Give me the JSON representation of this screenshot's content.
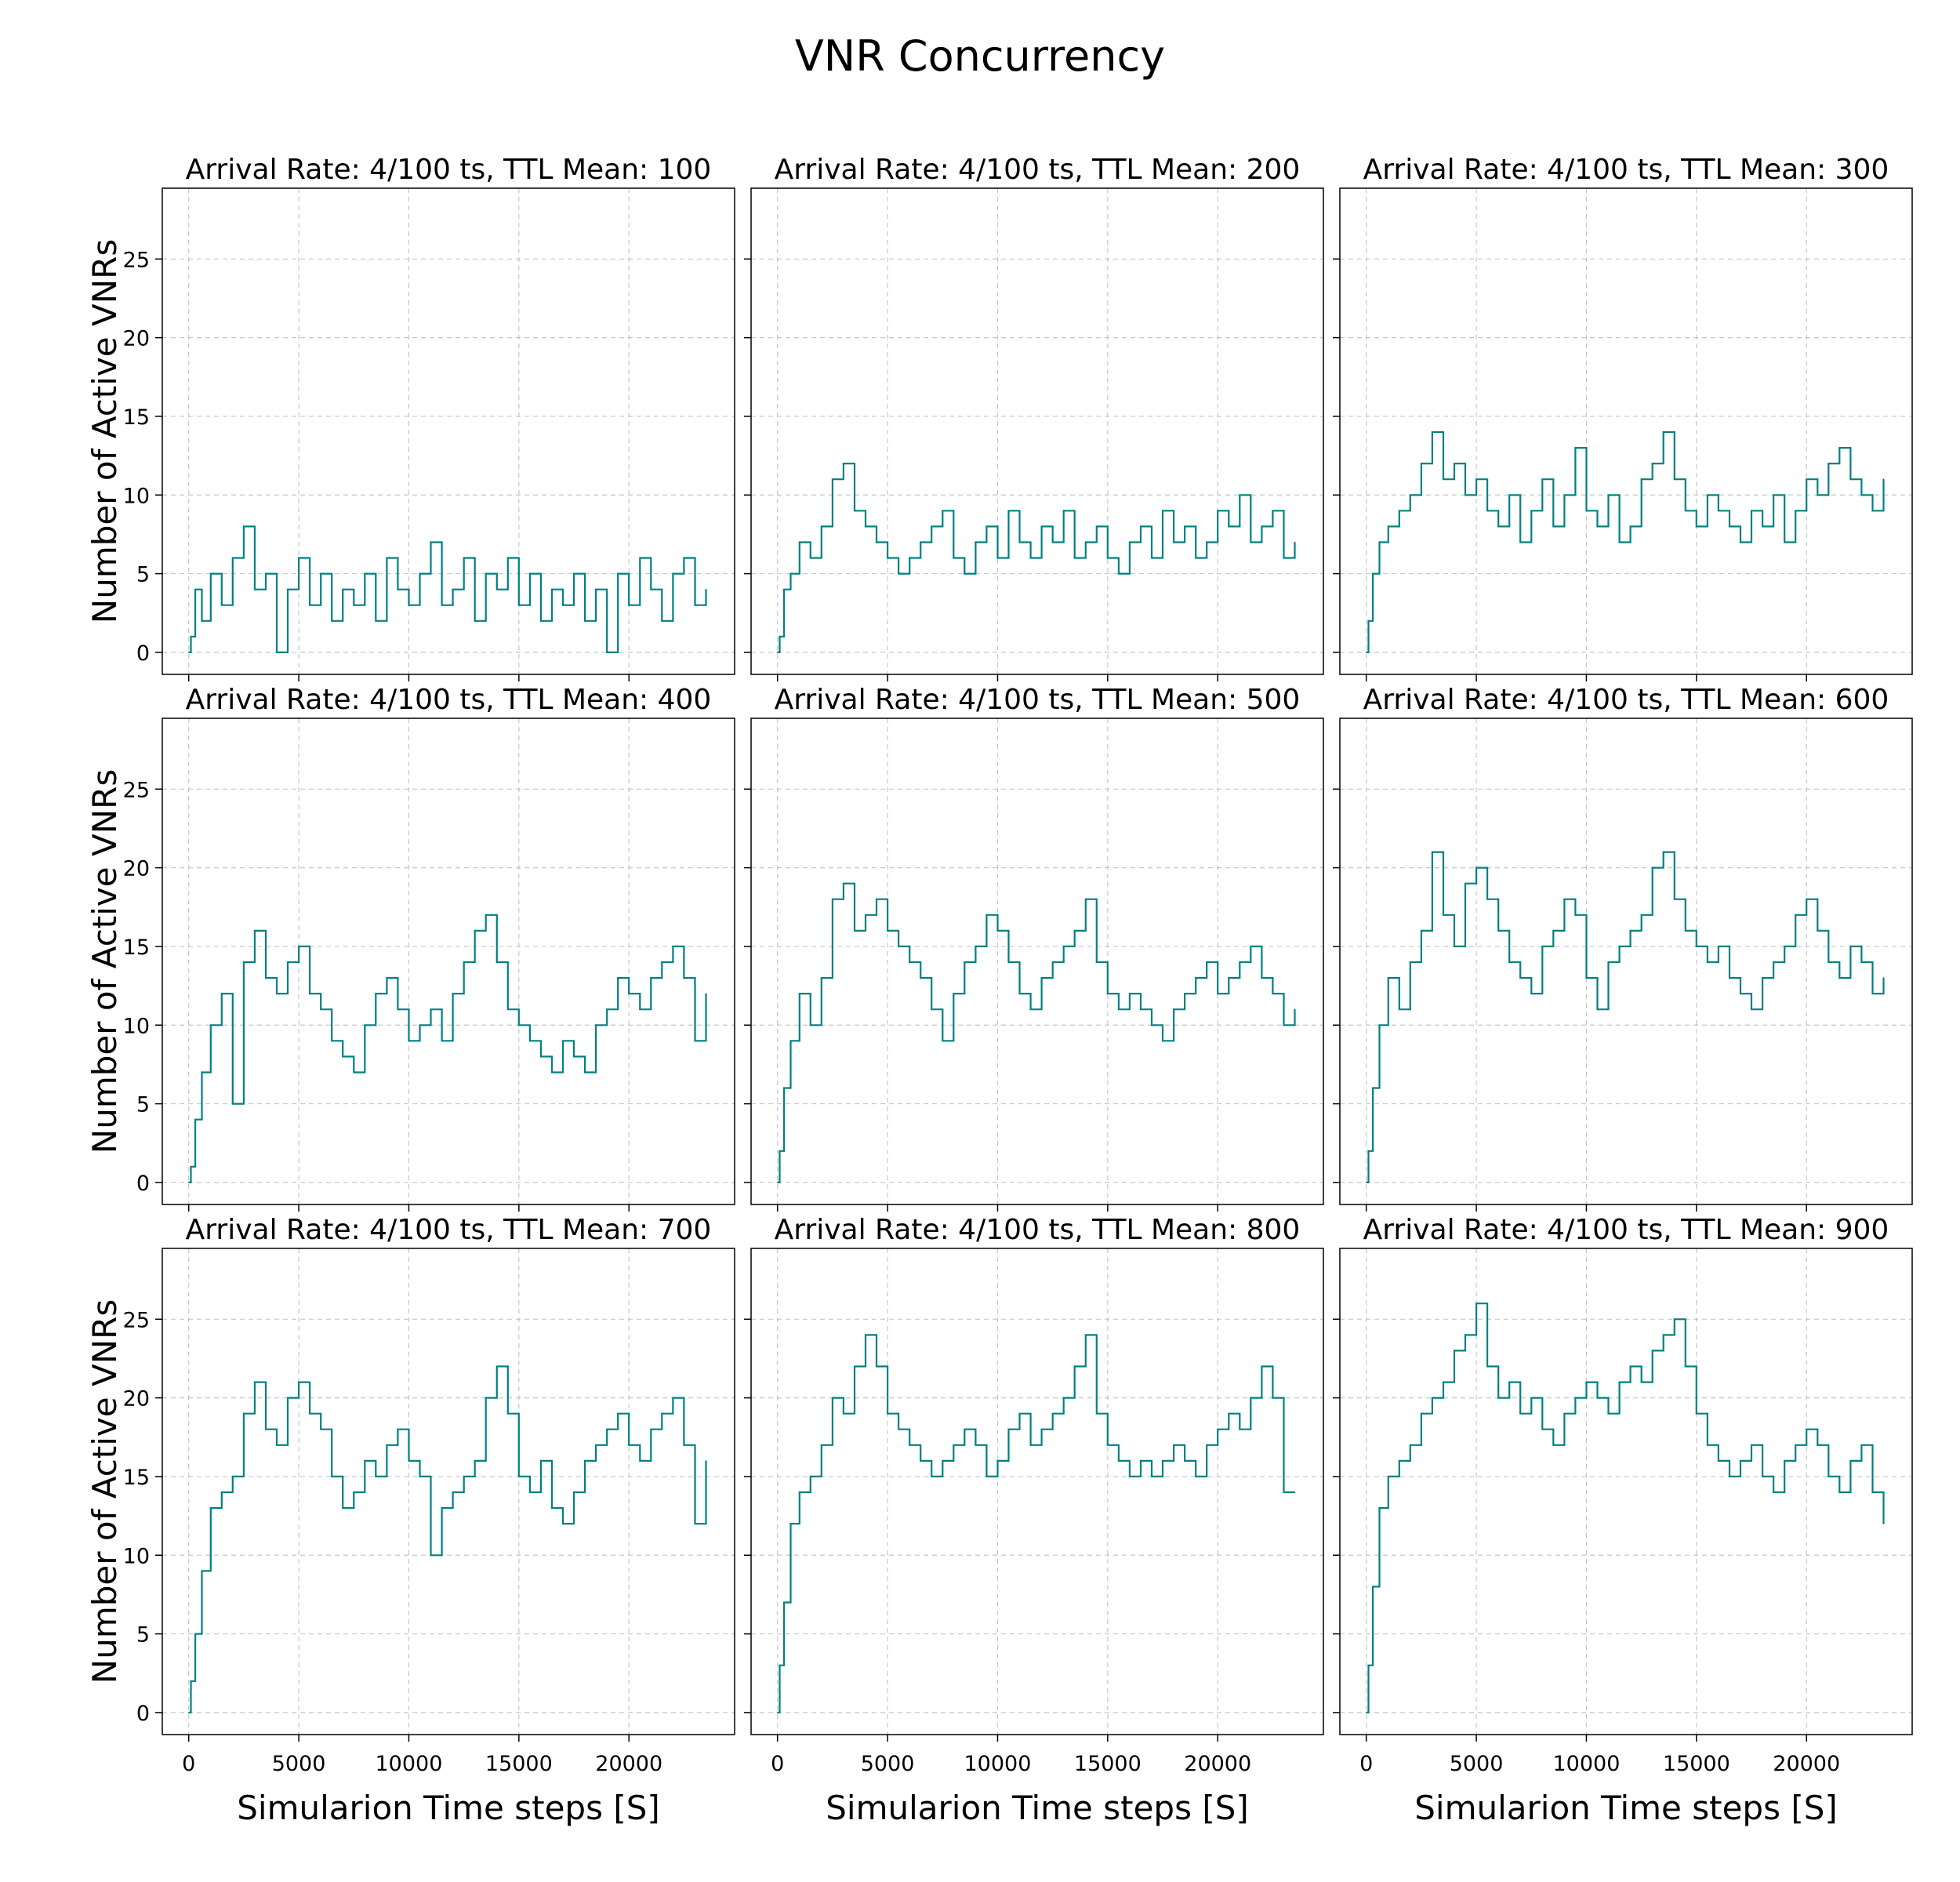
{
  "chart_data": {
    "type": "line",
    "title": "VNR Concurrency",
    "xlabel": "Simularion Time steps [S]",
    "ylabel": "Number of Active VNRs",
    "xticks": [
      0,
      5000,
      10000,
      15000,
      20000
    ],
    "yticks": [
      0,
      5,
      10,
      15,
      20,
      25
    ],
    "xlim": [
      -1200,
      24800
    ],
    "ylim": [
      -1.4,
      29.5
    ],
    "grid": true,
    "line_color": "#008080",
    "subplots": [
      {
        "title": "Arrival Rate: 4/100 ts, TTL Mean: 100",
        "x": [
          0,
          100,
          300,
          600,
          1000,
          1500,
          2000,
          2500,
          3000,
          3500,
          4000,
          4500,
          5000,
          5500,
          6000,
          6500,
          7000,
          7500,
          8000,
          8500,
          9000,
          9500,
          10000,
          10500,
          11000,
          11500,
          12000,
          12500,
          13000,
          13500,
          14000,
          14500,
          15000,
          15500,
          16000,
          16500,
          17000,
          17500,
          18000,
          18500,
          19000,
          19500,
          20000,
          20500,
          21000,
          21500,
          22000,
          22500,
          23000,
          23500
        ],
        "y": [
          0,
          1,
          4,
          2,
          5,
          3,
          6,
          8,
          4,
          5,
          0,
          4,
          6,
          3,
          5,
          2,
          4,
          3,
          5,
          2,
          6,
          4,
          3,
          5,
          7,
          3,
          4,
          6,
          2,
          5,
          4,
          6,
          3,
          5,
          2,
          4,
          3,
          5,
          2,
          4,
          0,
          5,
          3,
          6,
          4,
          2,
          5,
          6,
          3,
          4
        ]
      },
      {
        "title": "Arrival Rate: 4/100 ts, TTL Mean: 200",
        "x": [
          0,
          100,
          300,
          600,
          1000,
          1500,
          2000,
          2500,
          3000,
          3500,
          4000,
          4500,
          5000,
          5500,
          6000,
          6500,
          7000,
          7500,
          8000,
          8500,
          9000,
          9500,
          10000,
          10500,
          11000,
          11500,
          12000,
          12500,
          13000,
          13500,
          14000,
          14500,
          15000,
          15500,
          16000,
          16500,
          17000,
          17500,
          18000,
          18500,
          19000,
          19500,
          20000,
          20500,
          21000,
          21500,
          22000,
          22500,
          23000,
          23500
        ],
        "y": [
          0,
          1,
          4,
          5,
          7,
          6,
          8,
          11,
          12,
          9,
          8,
          7,
          6,
          5,
          6,
          7,
          8,
          9,
          6,
          5,
          7,
          8,
          6,
          9,
          7,
          6,
          8,
          7,
          9,
          6,
          7,
          8,
          6,
          5,
          7,
          8,
          6,
          9,
          7,
          8,
          6,
          7,
          9,
          8,
          10,
          7,
          8,
          9,
          6,
          7
        ]
      },
      {
        "title": "Arrival Rate: 4/100 ts, TTL Mean: 300",
        "x": [
          0,
          100,
          300,
          600,
          1000,
          1500,
          2000,
          2500,
          3000,
          3500,
          4000,
          4500,
          5000,
          5500,
          6000,
          6500,
          7000,
          7500,
          8000,
          8500,
          9000,
          9500,
          10000,
          10500,
          11000,
          11500,
          12000,
          12500,
          13000,
          13500,
          14000,
          14500,
          15000,
          15500,
          16000,
          16500,
          17000,
          17500,
          18000,
          18500,
          19000,
          19500,
          20000,
          20500,
          21000,
          21500,
          22000,
          22500,
          23000,
          23500
        ],
        "y": [
          0,
          2,
          5,
          7,
          8,
          9,
          10,
          12,
          14,
          11,
          12,
          10,
          11,
          9,
          8,
          10,
          7,
          9,
          11,
          8,
          10,
          13,
          9,
          8,
          10,
          7,
          8,
          11,
          12,
          14,
          11,
          9,
          8,
          10,
          9,
          8,
          7,
          9,
          8,
          10,
          7,
          9,
          11,
          10,
          12,
          13,
          11,
          10,
          9,
          11
        ]
      },
      {
        "title": "Arrival Rate: 4/100 ts, TTL Mean: 400",
        "x": [
          0,
          100,
          300,
          600,
          1000,
          1500,
          2000,
          2500,
          3000,
          3500,
          4000,
          4500,
          5000,
          5500,
          6000,
          6500,
          7000,
          7500,
          8000,
          8500,
          9000,
          9500,
          10000,
          10500,
          11000,
          11500,
          12000,
          12500,
          13000,
          13500,
          14000,
          14500,
          15000,
          15500,
          16000,
          16500,
          17000,
          17500,
          18000,
          18500,
          19000,
          19500,
          20000,
          20500,
          21000,
          21500,
          22000,
          22500,
          23000,
          23500
        ],
        "y": [
          0,
          1,
          4,
          7,
          10,
          12,
          5,
          14,
          16,
          13,
          12,
          14,
          15,
          12,
          11,
          9,
          8,
          7,
          10,
          12,
          13,
          11,
          9,
          10,
          11,
          9,
          12,
          14,
          16,
          17,
          14,
          11,
          10,
          9,
          8,
          7,
          9,
          8,
          7,
          10,
          11,
          13,
          12,
          11,
          13,
          14,
          15,
          13,
          9,
          12
        ]
      },
      {
        "title": "Arrival Rate: 4/100 ts, TTL Mean: 500",
        "x": [
          0,
          100,
          300,
          600,
          1000,
          1500,
          2000,
          2500,
          3000,
          3500,
          4000,
          4500,
          5000,
          5500,
          6000,
          6500,
          7000,
          7500,
          8000,
          8500,
          9000,
          9500,
          10000,
          10500,
          11000,
          11500,
          12000,
          12500,
          13000,
          13500,
          14000,
          14500,
          15000,
          15500,
          16000,
          16500,
          17000,
          17500,
          18000,
          18500,
          19000,
          19500,
          20000,
          20500,
          21000,
          21500,
          22000,
          22500,
          23000,
          23500
        ],
        "y": [
          0,
          2,
          6,
          9,
          12,
          10,
          13,
          18,
          19,
          16,
          17,
          18,
          16,
          15,
          14,
          13,
          11,
          9,
          12,
          14,
          15,
          17,
          16,
          14,
          12,
          11,
          13,
          14,
          15,
          16,
          18,
          14,
          12,
          11,
          12,
          11,
          10,
          9,
          11,
          12,
          13,
          14,
          12,
          13,
          14,
          15,
          13,
          12,
          10,
          11
        ]
      },
      {
        "title": "Arrival Rate: 4/100 ts, TTL Mean: 600",
        "x": [
          0,
          100,
          300,
          600,
          1000,
          1500,
          2000,
          2500,
          3000,
          3500,
          4000,
          4500,
          5000,
          5500,
          6000,
          6500,
          7000,
          7500,
          8000,
          8500,
          9000,
          9500,
          10000,
          10500,
          11000,
          11500,
          12000,
          12500,
          13000,
          13500,
          14000,
          14500,
          15000,
          15500,
          16000,
          16500,
          17000,
          17500,
          18000,
          18500,
          19000,
          19500,
          20000,
          20500,
          21000,
          21500,
          22000,
          22500,
          23000,
          23500
        ],
        "y": [
          0,
          2,
          6,
          10,
          13,
          11,
          14,
          16,
          21,
          17,
          15,
          19,
          20,
          18,
          16,
          14,
          13,
          12,
          15,
          16,
          18,
          17,
          13,
          11,
          14,
          15,
          16,
          17,
          20,
          21,
          18,
          16,
          15,
          14,
          15,
          13,
          12,
          11,
          13,
          14,
          15,
          17,
          18,
          16,
          14,
          13,
          15,
          14,
          12,
          13
        ]
      },
      {
        "title": "Arrival Rate: 4/100 ts, TTL Mean: 700",
        "x": [
          0,
          100,
          300,
          600,
          1000,
          1500,
          2000,
          2500,
          3000,
          3500,
          4000,
          4500,
          5000,
          5500,
          6000,
          6500,
          7000,
          7500,
          8000,
          8500,
          9000,
          9500,
          10000,
          10500,
          11000,
          11500,
          12000,
          12500,
          13000,
          13500,
          14000,
          14500,
          15000,
          15500,
          16000,
          16500,
          17000,
          17500,
          18000,
          18500,
          19000,
          19500,
          20000,
          20500,
          21000,
          21500,
          22000,
          22500,
          23000,
          23500
        ],
        "y": [
          0,
          2,
          5,
          9,
          13,
          14,
          15,
          19,
          21,
          18,
          17,
          20,
          21,
          19,
          18,
          15,
          13,
          14,
          16,
          15,
          17,
          18,
          16,
          15,
          10,
          13,
          14,
          15,
          16,
          20,
          22,
          19,
          15,
          14,
          16,
          13,
          12,
          14,
          16,
          17,
          18,
          19,
          17,
          16,
          18,
          19,
          20,
          17,
          12,
          16
        ]
      },
      {
        "title": "Arrival Rate: 4/100 ts, TTL Mean: 800",
        "x": [
          0,
          100,
          300,
          600,
          1000,
          1500,
          2000,
          2500,
          3000,
          3500,
          4000,
          4500,
          5000,
          5500,
          6000,
          6500,
          7000,
          7500,
          8000,
          8500,
          9000,
          9500,
          10000,
          10500,
          11000,
          11500,
          12000,
          12500,
          13000,
          13500,
          14000,
          14500,
          15000,
          15500,
          16000,
          16500,
          17000,
          17500,
          18000,
          18500,
          19000,
          19500,
          20000,
          20500,
          21000,
          21500,
          22000,
          22500,
          23000,
          23500
        ],
        "y": [
          0,
          3,
          7,
          12,
          14,
          15,
          17,
          20,
          19,
          22,
          24,
          22,
          19,
          18,
          17,
          16,
          15,
          16,
          17,
          18,
          17,
          15,
          16,
          18,
          19,
          17,
          18,
          19,
          20,
          22,
          24,
          19,
          17,
          16,
          15,
          16,
          15,
          16,
          17,
          16,
          15,
          17,
          18,
          19,
          18,
          20,
          22,
          20,
          14,
          14
        ]
      },
      {
        "title": "Arrival Rate: 4/100 ts, TTL Mean: 900",
        "x": [
          0,
          100,
          300,
          600,
          1000,
          1500,
          2000,
          2500,
          3000,
          3500,
          4000,
          4500,
          5000,
          5500,
          6000,
          6500,
          7000,
          7500,
          8000,
          8500,
          9000,
          9500,
          10000,
          10500,
          11000,
          11500,
          12000,
          12500,
          13000,
          13500,
          14000,
          14500,
          15000,
          15500,
          16000,
          16500,
          17000,
          17500,
          18000,
          18500,
          19000,
          19500,
          20000,
          20500,
          21000,
          21500,
          22000,
          22500,
          23000,
          23500
        ],
        "y": [
          0,
          3,
          8,
          13,
          15,
          16,
          17,
          19,
          20,
          21,
          23,
          24,
          26,
          22,
          20,
          21,
          19,
          20,
          18,
          17,
          19,
          20,
          21,
          20,
          19,
          21,
          22,
          21,
          23,
          24,
          25,
          22,
          19,
          17,
          16,
          15,
          16,
          17,
          15,
          14,
          16,
          17,
          18,
          17,
          15,
          14,
          16,
          17,
          14,
          12
        ]
      }
    ]
  }
}
